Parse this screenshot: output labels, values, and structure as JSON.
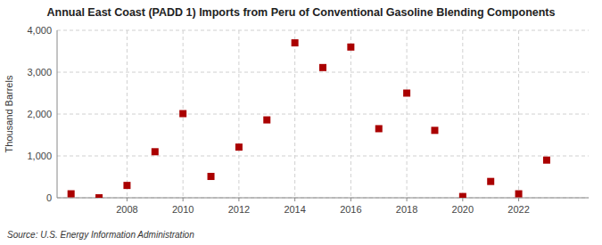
{
  "chart_data": {
    "type": "scatter",
    "title": "Annual East Coast (PADD 1) Imports from Peru of Conventional Gasoline Blending Components",
    "ylabel": "Thousand Barrels",
    "source": "Source: U.S. Energy Information Administration",
    "x": [
      2006,
      2007,
      2008,
      2009,
      2010,
      2011,
      2012,
      2013,
      2014,
      2015,
      2016,
      2017,
      2018,
      2019,
      2020,
      2021,
      2022,
      2023
    ],
    "values": [
      95,
      0,
      295,
      1100,
      2010,
      510,
      1210,
      1860,
      3700,
      3110,
      3600,
      1650,
      2500,
      1610,
      30,
      390,
      95,
      900
    ],
    "color": "#aa0000",
    "marker": "square",
    "xlim": [
      2005.5,
      2024.5
    ],
    "xticks": [
      2008,
      2010,
      2012,
      2014,
      2016,
      2018,
      2020,
      2022
    ],
    "ylim": [
      0,
      4000
    ],
    "yticks": [
      0,
      {
        "value": 1000,
        "label": "1,000"
      },
      {
        "value": 2000,
        "label": "2,000"
      },
      {
        "value": 3000,
        "label": "3,000"
      },
      {
        "value": 4000,
        "label": "4,000"
      }
    ],
    "grid": true
  }
}
